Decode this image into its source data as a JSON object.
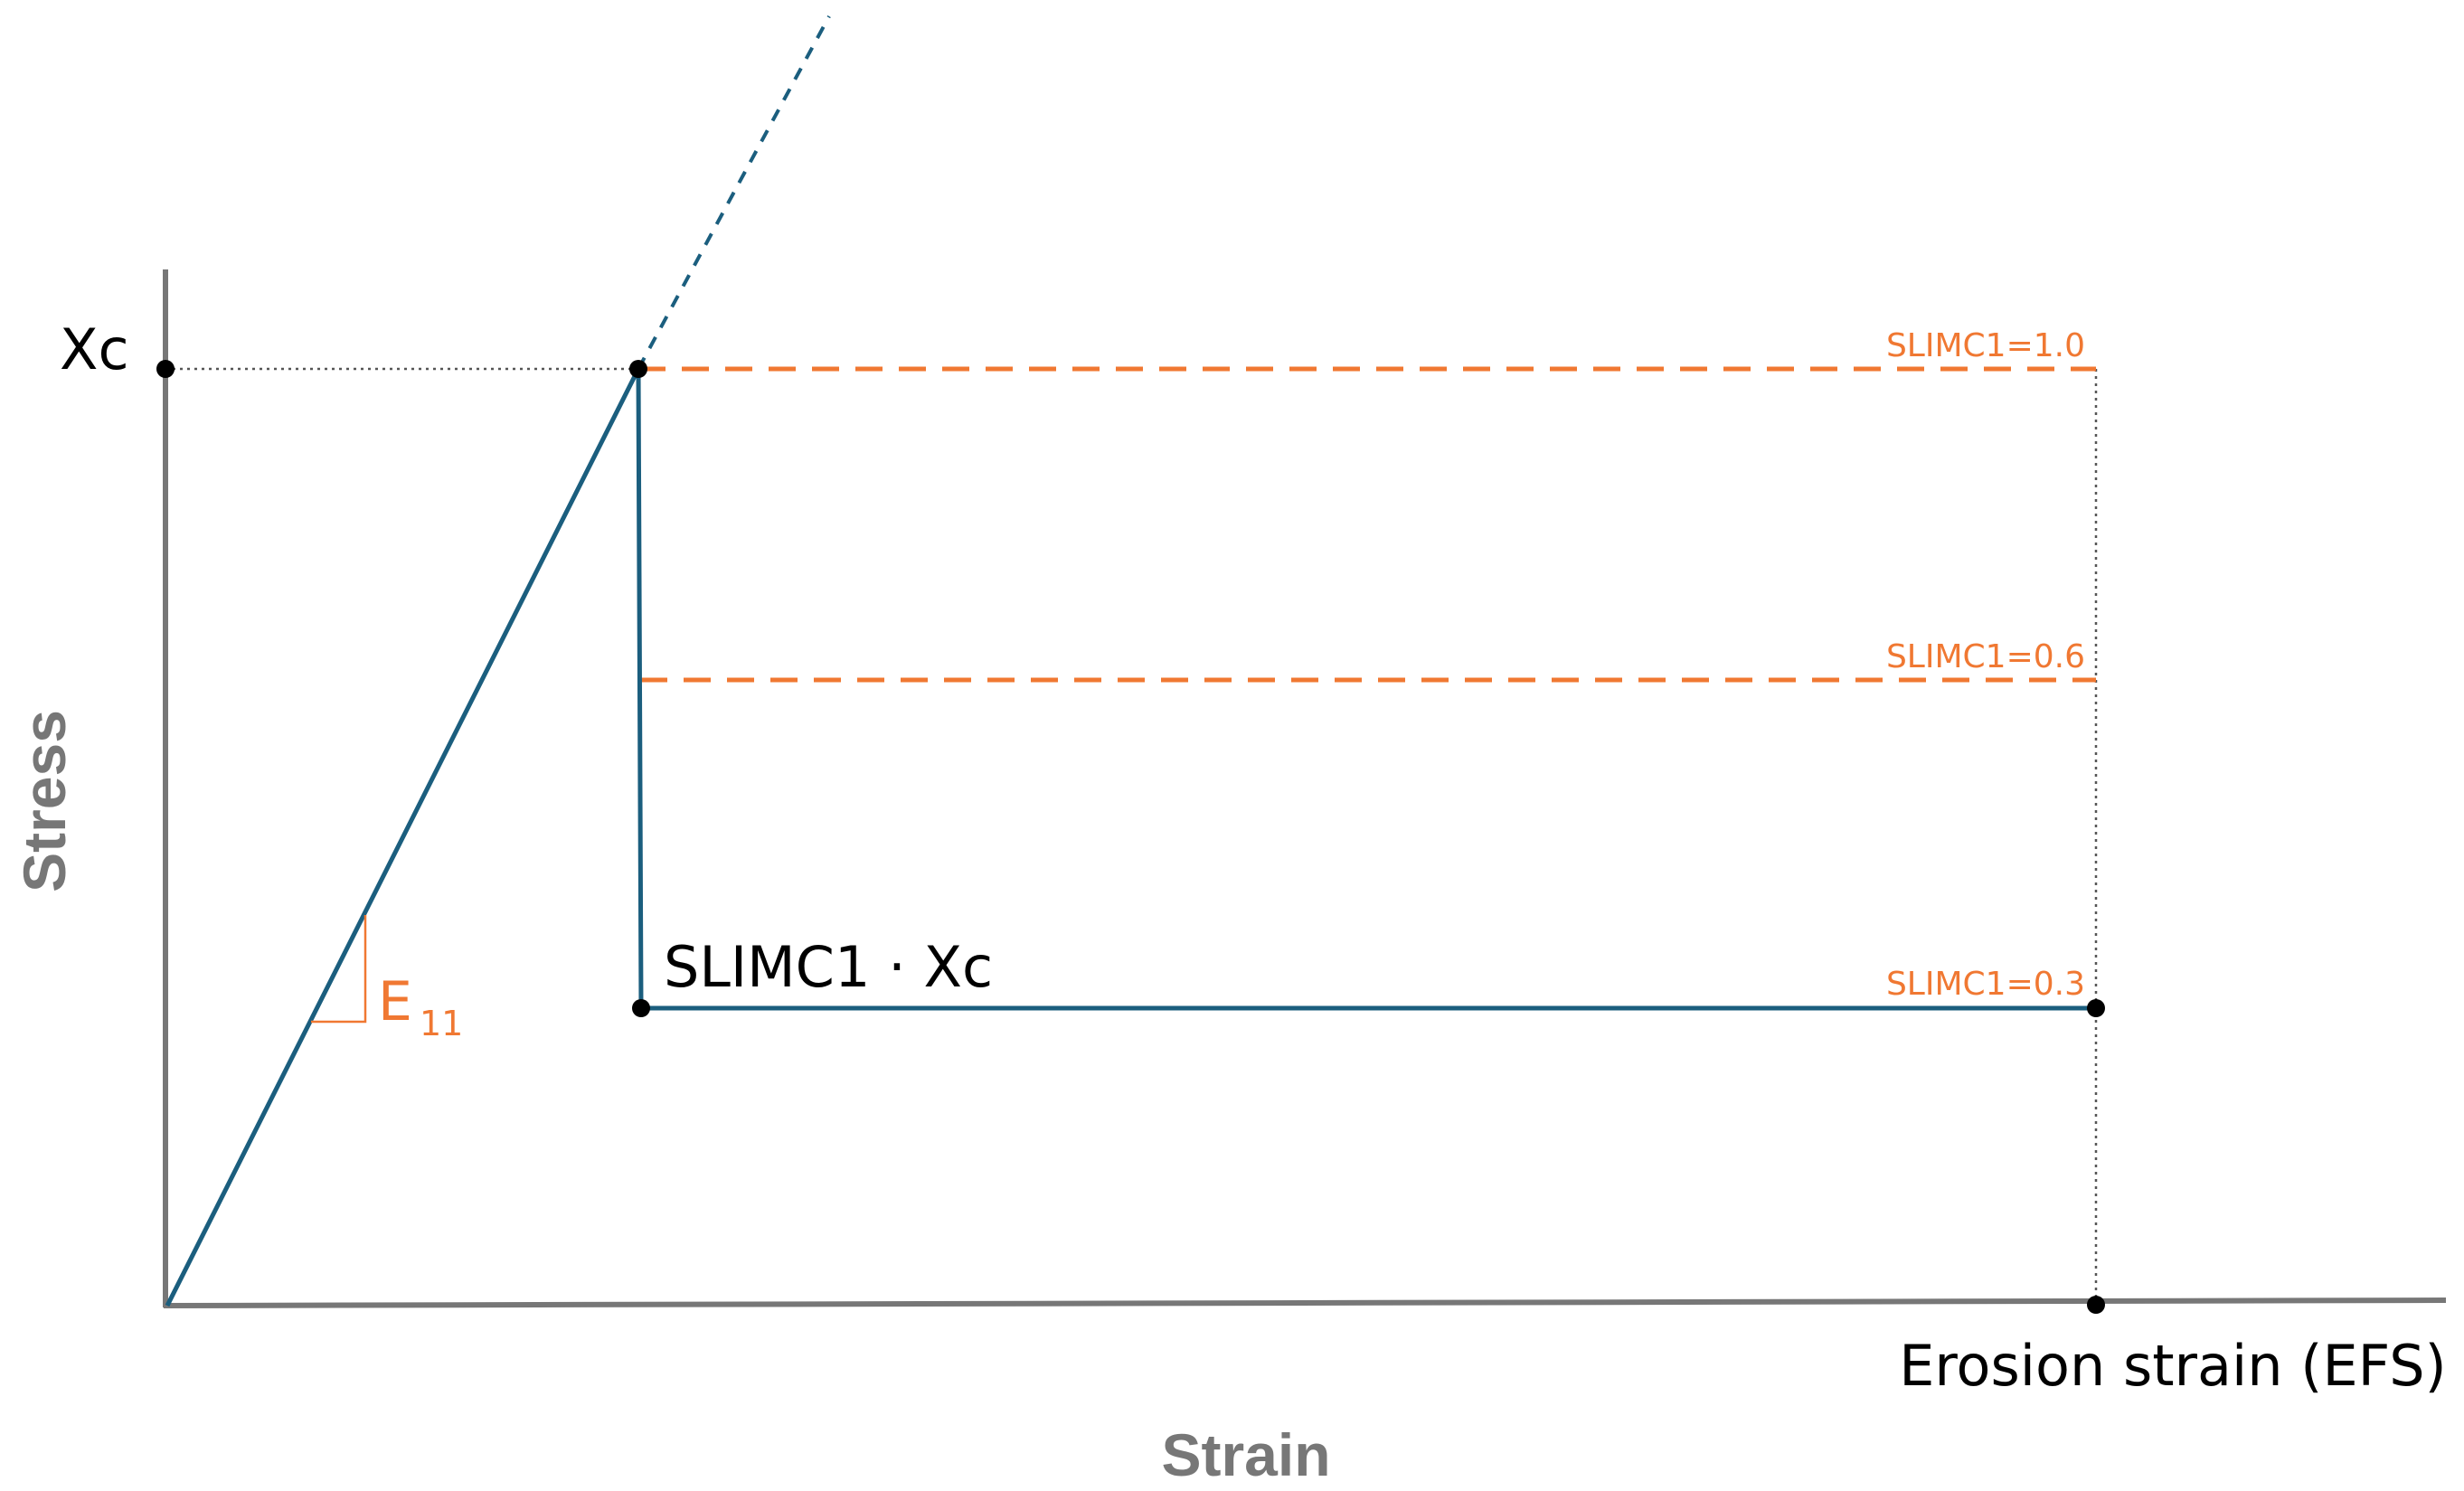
{
  "diagram": {
    "axes": {
      "x_title": "Strain",
      "y_title": "Stress"
    },
    "labels": {
      "xc": "Xc",
      "slimc_xc": "SLIMC1 · Xc",
      "erosion_strain": "Erosion strain (EFS)",
      "modulus_main": "E",
      "modulus_sub": "11"
    },
    "levels": [
      {
        "label": "SLIMC1=1.0",
        "value": 1.0,
        "style": "dashed"
      },
      {
        "label": "SLIMC1=0.6",
        "value": 0.6,
        "style": "dashed"
      },
      {
        "label": "SLIMC1=0.3",
        "value": 0.3,
        "style": "solid"
      }
    ],
    "colors": {
      "axis": "#777777",
      "curve": "#1b5e7e",
      "accent": "#f07832",
      "guide": "#555555",
      "point": "#000000"
    }
  }
}
